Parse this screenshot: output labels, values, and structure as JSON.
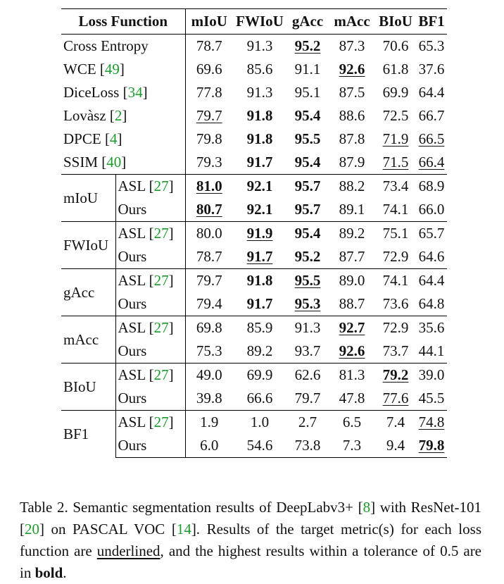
{
  "headers": [
    "Loss Function",
    "mIoU",
    "FWIoU",
    "gAcc",
    "mAcc",
    "BIoU",
    "BF1"
  ],
  "baselines": [
    {
      "name": "Cross Entropy",
      "ref": "",
      "cells": [
        {
          "v": "78.7"
        },
        {
          "v": "91.3"
        },
        {
          "v": "95.2",
          "b": 1,
          "u": 1
        },
        {
          "v": "87.3"
        },
        {
          "v": "70.6"
        },
        {
          "v": "65.3"
        }
      ]
    },
    {
      "name": "WCE",
      "ref": "49",
      "cells": [
        {
          "v": "69.6"
        },
        {
          "v": "85.6"
        },
        {
          "v": "91.1"
        },
        {
          "v": "92.6",
          "b": 1,
          "u": 1
        },
        {
          "v": "61.8"
        },
        {
          "v": "37.6"
        }
      ]
    },
    {
      "name": "DiceLoss",
      "ref": "34",
      "cells": [
        {
          "v": "77.8"
        },
        {
          "v": "91.3"
        },
        {
          "v": "95.1"
        },
        {
          "v": "87.5"
        },
        {
          "v": "69.9"
        },
        {
          "v": "64.4"
        }
      ]
    },
    {
      "name": "Lovàsz",
      "ref": "2",
      "cells": [
        {
          "v": "79.7",
          "u": 1
        },
        {
          "v": "91.8",
          "b": 1
        },
        {
          "v": "95.4",
          "b": 1
        },
        {
          "v": "88.6"
        },
        {
          "v": "72.5"
        },
        {
          "v": "66.7"
        }
      ]
    },
    {
      "name": "DPCE",
      "ref": "4",
      "cells": [
        {
          "v": "79.8"
        },
        {
          "v": "91.8",
          "b": 1
        },
        {
          "v": "95.5",
          "b": 1
        },
        {
          "v": "87.8"
        },
        {
          "v": "71.9",
          "u": 1
        },
        {
          "v": "66.5",
          "u": 1
        }
      ]
    },
    {
      "name": "SSIM",
      "ref": "40",
      "cells": [
        {
          "v": "79.3"
        },
        {
          "v": "91.7",
          "b": 1
        },
        {
          "v": "95.4",
          "b": 1
        },
        {
          "v": "87.9"
        },
        {
          "v": "71.5",
          "u": 1
        },
        {
          "v": "66.4",
          "u": 1
        }
      ]
    }
  ],
  "groups": [
    {
      "label": "mIoU",
      "rows": [
        {
          "method": "ASL",
          "ref": "27",
          "cells": [
            {
              "v": "81.0",
              "b": 1,
              "u": 1
            },
            {
              "v": "92.1",
              "b": 1
            },
            {
              "v": "95.7",
              "b": 1
            },
            {
              "v": "88.2"
            },
            {
              "v": "73.4"
            },
            {
              "v": "68.9"
            }
          ]
        },
        {
          "method": "Ours",
          "ref": "",
          "cells": [
            {
              "v": "80.7",
              "b": 1,
              "u": 1
            },
            {
              "v": "92.1",
              "b": 1
            },
            {
              "v": "95.7",
              "b": 1
            },
            {
              "v": "89.1"
            },
            {
              "v": "74.1"
            },
            {
              "v": "66.0"
            }
          ]
        }
      ]
    },
    {
      "label": "FWIoU",
      "rows": [
        {
          "method": "ASL",
          "ref": "27",
          "cells": [
            {
              "v": "80.0"
            },
            {
              "v": "91.9",
              "b": 1,
              "u": 1
            },
            {
              "v": "95.4",
              "b": 1
            },
            {
              "v": "89.2"
            },
            {
              "v": "75.1"
            },
            {
              "v": "65.7"
            }
          ]
        },
        {
          "method": "Ours",
          "ref": "",
          "cells": [
            {
              "v": "78.7"
            },
            {
              "v": "91.7",
              "b": 1,
              "u": 1
            },
            {
              "v": "95.2",
              "b": 1
            },
            {
              "v": "87.7"
            },
            {
              "v": "72.9"
            },
            {
              "v": "64.6"
            }
          ]
        }
      ]
    },
    {
      "label": "gAcc",
      "rows": [
        {
          "method": "ASL",
          "ref": "27",
          "cells": [
            {
              "v": "79.7"
            },
            {
              "v": "91.8",
              "b": 1
            },
            {
              "v": "95.5",
              "b": 1,
              "u": 1
            },
            {
              "v": "89.0"
            },
            {
              "v": "74.1"
            },
            {
              "v": "64.4"
            }
          ]
        },
        {
          "method": "Ours",
          "ref": "",
          "cells": [
            {
              "v": "79.4"
            },
            {
              "v": "91.7",
              "b": 1
            },
            {
              "v": "95.3",
              "b": 1,
              "u": 1
            },
            {
              "v": "88.7"
            },
            {
              "v": "73.6"
            },
            {
              "v": "64.8"
            }
          ]
        }
      ]
    },
    {
      "label": "mAcc",
      "rows": [
        {
          "method": "ASL",
          "ref": "27",
          "cells": [
            {
              "v": "69.8"
            },
            {
              "v": "85.9"
            },
            {
              "v": "91.3"
            },
            {
              "v": "92.7",
              "b": 1,
              "u": 1
            },
            {
              "v": "72.9"
            },
            {
              "v": "35.6"
            }
          ]
        },
        {
          "method": "Ours",
          "ref": "",
          "cells": [
            {
              "v": "75.3"
            },
            {
              "v": "89.2"
            },
            {
              "v": "93.7"
            },
            {
              "v": "92.6",
              "b": 1,
              "u": 1
            },
            {
              "v": "73.7"
            },
            {
              "v": "44.1"
            }
          ]
        }
      ]
    },
    {
      "label": "BIoU",
      "rows": [
        {
          "method": "ASL",
          "ref": "27",
          "cells": [
            {
              "v": "49.0"
            },
            {
              "v": "69.9"
            },
            {
              "v": "62.6"
            },
            {
              "v": "81.3"
            },
            {
              "v": "79.2",
              "b": 1,
              "u": 1
            },
            {
              "v": "39.0"
            }
          ]
        },
        {
          "method": "Ours",
          "ref": "",
          "cells": [
            {
              "v": "39.8"
            },
            {
              "v": "66.6"
            },
            {
              "v": "79.7"
            },
            {
              "v": "47.8"
            },
            {
              "v": "77.6",
              "u": 1
            },
            {
              "v": "45.5"
            }
          ]
        }
      ]
    },
    {
      "label": "BF1",
      "rows": [
        {
          "method": "ASL",
          "ref": "27",
          "cells": [
            {
              "v": "1.9"
            },
            {
              "v": "1.0"
            },
            {
              "v": "2.7"
            },
            {
              "v": "6.5"
            },
            {
              "v": "7.4"
            },
            {
              "v": "74.8",
              "u": 1
            }
          ]
        },
        {
          "method": "Ours",
          "ref": "",
          "cells": [
            {
              "v": "6.0"
            },
            {
              "v": "54.6"
            },
            {
              "v": "73.8"
            },
            {
              "v": "7.3"
            },
            {
              "v": "9.4"
            },
            {
              "v": "79.8",
              "b": 1,
              "u": 1
            }
          ]
        }
      ]
    }
  ],
  "caption": {
    "p1": "Table 2. Semantic segmentation results of DeepLabv3+ [",
    "r1": "8",
    "p2": "] with ResNet-101 [",
    "r2": "20",
    "p3": "] on PASCAL VOC [",
    "r3": "14",
    "p4": "].  Results of the target metric(s) for each loss function are ",
    "underlined_word": "underlined",
    "p5": ", and the highest results within a tolerance of 0.5 are in ",
    "bold_word": "bold",
    "p6": "."
  },
  "colors": {
    "ref_link": "#1a9b2a",
    "text": "#111111"
  }
}
